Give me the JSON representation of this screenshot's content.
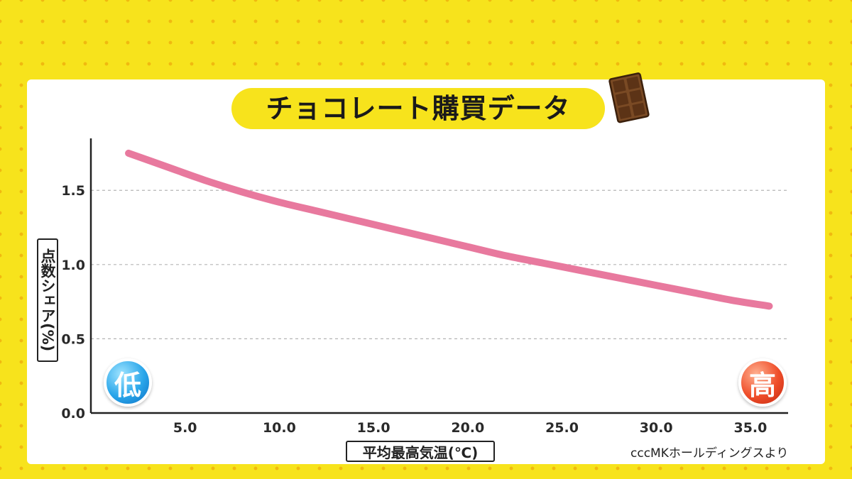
{
  "title": "チョコレート購買データ",
  "source": "cccMKホールディングスより",
  "badges": {
    "low": "低",
    "high": "高"
  },
  "icons": {
    "title_icon": "chocolate-bar-icon"
  },
  "colors": {
    "background": "#f7e31c",
    "line": "#e8799e",
    "badge_low": "#2aa6ea",
    "badge_high": "#ef4e2a"
  },
  "chart_data": {
    "type": "line",
    "title": "チョコレート購買データ",
    "xlabel": "平均最高気温(℃)",
    "ylabel": "点数シェア(%)",
    "xlim": [
      0,
      37
    ],
    "ylim": [
      0,
      1.85
    ],
    "x_ticks": [
      "5.0",
      "10.0",
      "15.0",
      "20.0",
      "25.0",
      "30.0",
      "35.0"
    ],
    "y_ticks": [
      "0.0",
      "0.5",
      "1.0",
      "1.5"
    ],
    "grid": "horizontal dashed",
    "series": [
      {
        "x": [
          2,
          4,
          6,
          8,
          10,
          12,
          14,
          16,
          18,
          20,
          22,
          24,
          26,
          28,
          30,
          32,
          34,
          36
        ],
        "values": [
          1.75,
          1.66,
          1.57,
          1.49,
          1.42,
          1.36,
          1.3,
          1.24,
          1.18,
          1.12,
          1.06,
          1.01,
          0.96,
          0.91,
          0.86,
          0.81,
          0.76,
          0.72
        ]
      }
    ]
  }
}
